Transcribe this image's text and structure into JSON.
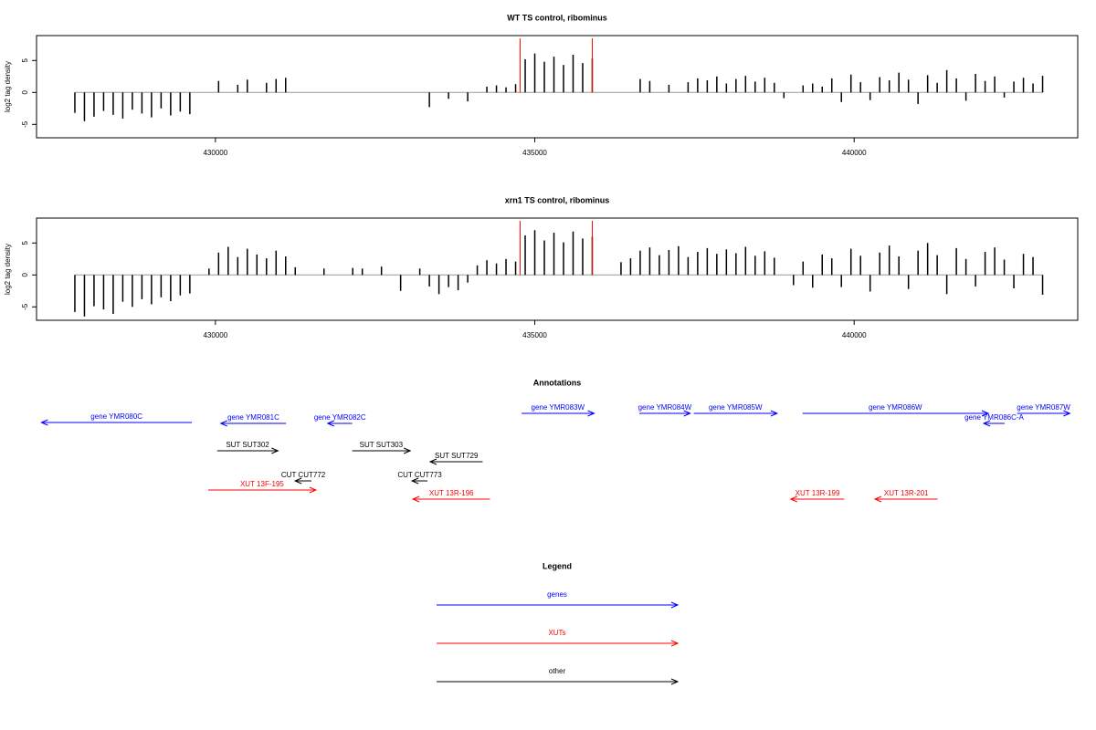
{
  "chart_data": [
    {
      "type": "bar",
      "title": "WT TS control, ribominus",
      "y_label": "log2 tag density",
      "color": "#000000",
      "x": [
        427800,
        427950,
        428100,
        428250,
        428400,
        428550,
        428700,
        428850,
        429000,
        429150,
        429300,
        429450,
        429600,
        429750,
        429900,
        430050,
        430200,
        430350,
        430500,
        430650,
        430800,
        430950,
        431100,
        431250,
        431400,
        431550,
        431700,
        431850,
        432000,
        432150,
        432300,
        432450,
        432600,
        432750,
        432900,
        433050,
        433200,
        433350,
        433500,
        433650,
        433800,
        433950,
        434100,
        434250,
        434400,
        434550,
        434700,
        434850,
        435000,
        435150,
        435300,
        435450,
        435600,
        435750,
        435900,
        436050,
        436200,
        436350,
        436500,
        436650,
        436800,
        436950,
        437100,
        437250,
        437400,
        437550,
        437700,
        437850,
        438000,
        438150,
        438300,
        438450,
        438600,
        438750,
        438900,
        439050,
        439200,
        439350,
        439500,
        439650,
        439800,
        439950,
        440100,
        440250,
        440400,
        440550,
        440700,
        440850,
        441000,
        441150,
        441300,
        441450,
        441600,
        441750,
        441900,
        442050,
        442200,
        442350,
        442500,
        442650,
        442800,
        442950
      ],
      "values": [
        -3.2,
        -4.5,
        -3.8,
        -2.9,
        -3.5,
        -4.1,
        -2.7,
        -3.3,
        -3.9,
        -2.5,
        -3.6,
        -3.0,
        -3.4,
        null,
        null,
        1.8,
        null,
        1.2,
        2.0,
        null,
        1.5,
        2.1,
        2.3,
        null,
        null,
        null,
        null,
        null,
        null,
        null,
        null,
        null,
        null,
        null,
        null,
        null,
        null,
        -2.3,
        null,
        -1.0,
        null,
        -1.4,
        null,
        0.9,
        1.1,
        0.8,
        1.3,
        5.2,
        6.1,
        4.8,
        5.6,
        4.3,
        5.9,
        4.6,
        5.3,
        null,
        null,
        null,
        null,
        2.1,
        1.8,
        null,
        1.2,
        null,
        1.6,
        2.2,
        1.9,
        2.5,
        1.4,
        2.1,
        2.6,
        1.7,
        2.3,
        1.5,
        -0.9,
        null,
        1.1,
        1.4,
        0.9,
        2.2,
        -1.5,
        2.8,
        1.6,
        -1.2,
        2.4,
        1.9,
        3.1,
        2.0,
        -1.8,
        2.7,
        1.5,
        3.5,
        2.2,
        -1.3,
        2.9,
        1.8,
        2.5,
        -0.8,
        1.7,
        2.3,
        1.4,
        2.6
      ],
      "xlim": [
        427200,
        443500
      ],
      "ylim": [
        -7.1,
        8.9
      ],
      "xticks": [
        430000,
        435000,
        440000
      ],
      "yticks": [
        -5,
        0,
        5
      ],
      "highlight_lines": [
        434770,
        435900
      ],
      "highlight_color": "#ff0000"
    },
    {
      "type": "bar",
      "title": "xrn1 TS control, ribominus",
      "y_label": "log2 tag density",
      "color": "#000000",
      "x": [
        427800,
        427950,
        428100,
        428250,
        428400,
        428550,
        428700,
        428850,
        429000,
        429150,
        429300,
        429450,
        429600,
        429750,
        429900,
        430050,
        430200,
        430350,
        430500,
        430650,
        430800,
        430950,
        431100,
        431250,
        431400,
        431550,
        431700,
        431850,
        432000,
        432150,
        432300,
        432450,
        432600,
        432750,
        432900,
        433050,
        433200,
        433350,
        433500,
        433650,
        433800,
        433950,
        434100,
        434250,
        434400,
        434550,
        434700,
        434850,
        435000,
        435150,
        435300,
        435450,
        435600,
        435750,
        435900,
        436050,
        436200,
        436350,
        436500,
        436650,
        436800,
        436950,
        437100,
        437250,
        437400,
        437550,
        437700,
        437850,
        438000,
        438150,
        438300,
        438450,
        438600,
        438750,
        438900,
        439050,
        439200,
        439350,
        439500,
        439650,
        439800,
        439950,
        440100,
        440250,
        440400,
        440550,
        440700,
        440850,
        441000,
        441150,
        441300,
        441450,
        441600,
        441750,
        441900,
        442050,
        442200,
        442350,
        442500,
        442650,
        442800,
        442950
      ],
      "values": [
        -5.8,
        -6.5,
        -4.9,
        -5.4,
        -6.1,
        -4.2,
        -5.0,
        -3.8,
        -4.6,
        -3.5,
        -4.1,
        -3.2,
        -2.9,
        null,
        1.0,
        3.5,
        4.4,
        2.8,
        4.1,
        3.2,
        2.6,
        3.8,
        2.9,
        1.2,
        null,
        null,
        1.0,
        null,
        null,
        1.1,
        1.0,
        null,
        1.3,
        null,
        -2.5,
        null,
        1.0,
        -1.8,
        -3.0,
        -1.9,
        -2.4,
        -1.2,
        1.5,
        2.3,
        1.8,
        2.5,
        2.1,
        6.2,
        7.0,
        5.4,
        6.6,
        5.1,
        6.8,
        5.7,
        6.0,
        null,
        null,
        2.0,
        2.6,
        3.8,
        4.3,
        3.1,
        3.9,
        4.5,
        2.8,
        3.6,
        4.2,
        3.3,
        4.0,
        3.4,
        4.4,
        3.0,
        3.7,
        2.7,
        null,
        -1.6,
        2.1,
        -2.0,
        3.2,
        2.6,
        -1.9,
        4.1,
        3.0,
        -2.6,
        3.5,
        4.6,
        2.9,
        -2.2,
        3.8,
        5.0,
        3.1,
        -3.0,
        4.2,
        2.5,
        -1.8,
        3.6,
        4.3,
        2.4,
        -2.1,
        3.3,
        2.8,
        -3.1
      ],
      "xlim": [
        427200,
        443500
      ],
      "ylim": [
        -7.1,
        8.9
      ],
      "xticks": [
        430000,
        435000,
        440000
      ],
      "yticks": [
        -5,
        0,
        5
      ],
      "highlight_lines": [
        434770,
        435900
      ],
      "highlight_color": "#ff0000"
    }
  ],
  "annotations": {
    "title": "Annotations",
    "features": [
      {
        "label": "gene YMR080C",
        "start": 427277,
        "end": 429631,
        "strand": "-",
        "color": "#0000ff"
      },
      {
        "label": "gene YMR081C",
        "start": 430085,
        "end": 431106,
        "strand": "-",
        "color": "#0000ff"
      },
      {
        "label": "gene YMR082C",
        "start": 431759,
        "end": 432142,
        "strand": "-",
        "color": "#0000ff"
      },
      {
        "label": "gene YMR083W",
        "start": 434794,
        "end": 435929,
        "strand": "+",
        "color": "#0000ff"
      },
      {
        "label": "gene YMR084W",
        "start": 436638,
        "end": 437433,
        "strand": "+",
        "color": "#0000ff"
      },
      {
        "label": "gene YMR085W",
        "start": 437489,
        "end": 438794,
        "strand": "+",
        "color": "#0000ff"
      },
      {
        "label": "gene YMR086W",
        "start": 439191,
        "end": 442099,
        "strand": "+",
        "color": "#0000ff"
      },
      {
        "label": "gene YMR086C-A",
        "start": 442028,
        "end": 442355,
        "strand": "-",
        "color": "#0000ff"
      },
      {
        "label": "gene YMR087W",
        "start": 442553,
        "end": 443376,
        "strand": "+",
        "color": "#0000ff"
      },
      {
        "label": "SUT SUT302",
        "start": 430028,
        "end": 430979,
        "strand": "+",
        "color": "#000000"
      },
      {
        "label": "SUT SUT303",
        "start": 432142,
        "end": 433050,
        "strand": "+",
        "color": "#000000"
      },
      {
        "label": "SUT SUT729",
        "start": 433362,
        "end": 434184,
        "strand": "-",
        "color": "#000000"
      },
      {
        "label": "CUT CUT772",
        "start": 431248,
        "end": 431504,
        "strand": "-",
        "color": "#000000"
      },
      {
        "label": "CUT CUT773",
        "start": 433078,
        "end": 433319,
        "strand": "-",
        "color": "#000000"
      },
      {
        "label": "XUT 13F-195",
        "start": 429887,
        "end": 431574,
        "strand": "+",
        "color": "#ff0000"
      },
      {
        "label": "XUT 13R-196",
        "start": 433092,
        "end": 434298,
        "strand": "-",
        "color": "#ff0000"
      },
      {
        "label": "XUT 13R-199",
        "start": 439007,
        "end": 439844,
        "strand": "-",
        "color": "#ff0000"
      },
      {
        "label": "XUT 13R-201",
        "start": 440326,
        "end": 441305,
        "strand": "-",
        "color": "#ff0000"
      }
    ]
  },
  "legend": {
    "title": "Legend",
    "items": [
      {
        "label": "genes",
        "color": "#0000ff"
      },
      {
        "label": "XUTs",
        "color": "#ff0000"
      },
      {
        "label": "other",
        "color": "#000000"
      }
    ]
  }
}
